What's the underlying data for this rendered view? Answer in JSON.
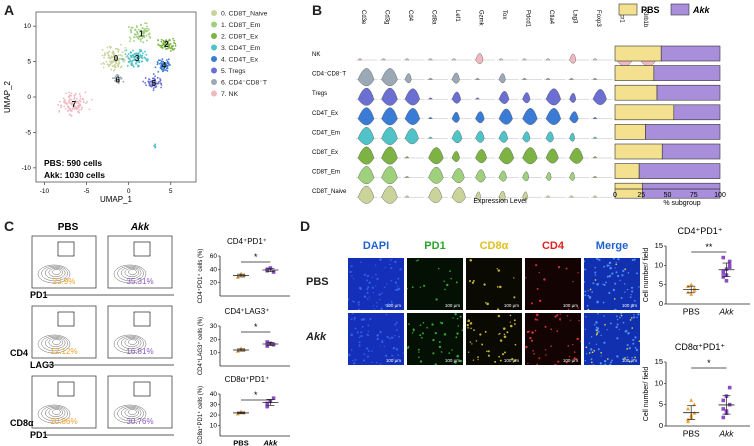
{
  "panels": {
    "A": "A",
    "B": "B",
    "C": "C",
    "D": "D"
  },
  "umap": {
    "xlabel": "UMAP_1",
    "ylabel": "UMAP_2",
    "xticks": [
      "-10",
      "-5",
      "0",
      "5"
    ],
    "yticks": [
      "-10",
      "-5",
      "0",
      "5",
      "10"
    ],
    "legend": [
      {
        "label": "0. CD8T_Naive",
        "color": "#c9d39a"
      },
      {
        "label": "1. CD8T_Em",
        "color": "#9fd07c"
      },
      {
        "label": "2. CD8T_Ex",
        "color": "#7cb342"
      },
      {
        "label": "3. CD4T_Em",
        "color": "#4fc3c7"
      },
      {
        "label": "4. CD4T_Ex",
        "color": "#3a7bd5"
      },
      {
        "label": "5. Tregs",
        "color": "#6a6fd1"
      },
      {
        "label": "6. CD4⁻CD8⁻T",
        "color": "#9aa9b5"
      },
      {
        "label": "7. NK",
        "color": "#f0b8c0"
      }
    ],
    "clusters": [
      {
        "id": "0",
        "x": -1.5,
        "y": 5.5,
        "color": "#c9d39a",
        "spread": 1.6,
        "n": 110
      },
      {
        "id": "1",
        "x": 1.5,
        "y": 9,
        "color": "#9fd07c",
        "spread": 1.3,
        "n": 80
      },
      {
        "id": "2",
        "x": 4.5,
        "y": 7.5,
        "color": "#7cb342",
        "spread": 1.0,
        "n": 70
      },
      {
        "id": "3",
        "x": 1,
        "y": 5.5,
        "color": "#4fc3c7",
        "spread": 1.4,
        "n": 100
      },
      {
        "id": "4",
        "x": 4.2,
        "y": 4.5,
        "color": "#3a7bd5",
        "spread": 0.9,
        "n": 60
      },
      {
        "id": "5",
        "x": 3,
        "y": 2,
        "color": "#6a6fd1",
        "spread": 1.0,
        "n": 60
      },
      {
        "id": "6",
        "x": -1.3,
        "y": 2.5,
        "color": "#9aa9b5",
        "spread": 0.6,
        "n": 25
      },
      {
        "id": "7",
        "x": -6.5,
        "y": -1,
        "color": "#f0b8c0",
        "spread": 1.6,
        "n": 110
      }
    ],
    "counts": [
      "PBS: 590 cells",
      "Akk: 1030 cells"
    ]
  },
  "violin": {
    "genes": [
      "Cd3e",
      "Cd3g",
      "Cd4",
      "Cd8a",
      "Lef1",
      "Gzmk",
      "Tox",
      "Pdcd1",
      "Ctla4",
      "Lag3",
      "Foxp3",
      "Ncr1",
      "Klrb1b"
    ],
    "celltypes": [
      "NK",
      "CD4⁻CD8⁻T",
      "Tregs",
      "CD4T_Ex",
      "CD4T_Em",
      "CD8T_Ex",
      "CD8T_Em",
      "CD8T_Naive"
    ],
    "colors": [
      "#f0b8c0",
      "#9aa9b5",
      "#6a6fd1",
      "#3a7bd5",
      "#4fc3c7",
      "#7cb342",
      "#9fd07c",
      "#c9d39a"
    ],
    "xlabel": "Expression Level",
    "expr": [
      [
        0,
        0,
        0,
        0,
        0,
        0.3,
        0,
        0,
        0,
        0.2,
        0,
        1,
        1
      ],
      [
        1,
        1,
        0.2,
        0,
        0.3,
        0,
        0.2,
        0,
        0,
        0,
        0,
        0,
        0
      ],
      [
        1,
        1,
        0.9,
        0,
        0.4,
        0,
        0.5,
        0.3,
        0.9,
        0.2,
        0.8,
        0,
        0
      ],
      [
        1,
        1,
        0.9,
        0,
        0.3,
        0.4,
        0.8,
        0.9,
        0.9,
        0.4,
        0,
        0,
        0
      ],
      [
        1,
        1,
        0.8,
        0,
        0.5,
        0.4,
        0.4,
        0.3,
        0.3,
        0.1,
        0,
        0,
        0
      ],
      [
        1,
        1,
        0,
        0.9,
        0.3,
        0.6,
        0.9,
        0.9,
        0.7,
        0.8,
        0,
        0,
        0
      ],
      [
        1,
        1,
        0,
        0.9,
        0.7,
        0.5,
        0.3,
        0.2,
        0.1,
        0.1,
        0,
        0,
        0
      ],
      [
        1,
        1,
        0,
        0.8,
        0.8,
        0.1,
        0.2,
        0.1,
        0,
        0,
        0,
        0,
        0
      ]
    ]
  },
  "subgroup": {
    "legend": [
      {
        "label": "PBS",
        "color": "#f3e18f"
      },
      {
        "label": "Akk",
        "color": "#a98fdb"
      }
    ],
    "xlabel": "% subgroup",
    "xticks": [
      "0",
      "25",
      "50",
      "75",
      "100"
    ],
    "pbs": [
      44,
      37,
      40,
      56,
      29,
      45,
      23,
      26
    ]
  },
  "flow": {
    "cols": [
      "PBS",
      "Akk"
    ],
    "rows": [
      {
        "ylab": "",
        "xlab": "PD1",
        "values": [
          "23.9%",
          "35.31%"
        ]
      },
      {
        "ylab": "CD4",
        "xlab": "LAG3",
        "values": [
          "12.12%",
          "16.81%"
        ]
      },
      {
        "ylab": "CD8α",
        "xlab": "PD1",
        "values": [
          "20.86%",
          "30.76%"
        ]
      }
    ],
    "pbs_color": "#f0a030",
    "akk_color": "#8a5cc0"
  },
  "cplots": [
    {
      "title": "CD4⁺PD1⁺",
      "ylabel": "CD4⁺PD1⁺ cells (%)",
      "yticks": [
        "20",
        "40",
        "60"
      ],
      "ymax": 60,
      "pbs": [
        28,
        33,
        31
      ],
      "akk": [
        38,
        42,
        36,
        40
      ],
      "sig": "*"
    },
    {
      "title": "CD4⁺LAG3⁺",
      "ylabel": "CD4⁺LAG3⁺ cells (%)",
      "yticks": [
        "10",
        "20",
        "30"
      ],
      "ymax": 30,
      "pbs": [
        11,
        13,
        12
      ],
      "akk": [
        15,
        17,
        16,
        18
      ],
      "sig": "*"
    },
    {
      "title": "CD8α⁺PD1⁺",
      "ylabel": "CD8α⁺PD1⁺ cells (%)",
      "yticks": [
        "10",
        "20",
        "30",
        "40"
      ],
      "ymax": 40,
      "pbs": [
        21,
        23,
        22
      ],
      "akk": [
        28,
        33,
        36,
        31
      ],
      "sig": "*"
    }
  ],
  "cgroups": [
    "PBS",
    "Akk"
  ],
  "imaging": {
    "channels": [
      {
        "label": "DAPI",
        "color": "#1f62d0",
        "bg": "#1430b8"
      },
      {
        "label": "PD1",
        "color": "#2aa52a",
        "bg": "#041004"
      },
      {
        "label": "CD8α",
        "color": "#e0c020",
        "bg": "#0a0a02"
      },
      {
        "label": "CD4",
        "color": "#e02020",
        "bg": "#140303"
      },
      {
        "label": "Merge",
        "color": "#1f62d0",
        "bg": "#1030b0"
      }
    ],
    "rows": [
      "PBS",
      "Akk"
    ],
    "scale": "100 μm"
  },
  "dplots": [
    {
      "title": "CD4⁺PD1⁺",
      "ylabel": "Cell number/ field",
      "yticks": [
        "0",
        "5",
        "10",
        "15"
      ],
      "ymax": 15,
      "pbs": [
        3,
        5,
        4,
        4.5,
        2.5,
        3.5
      ],
      "akk": [
        7,
        9,
        11,
        8,
        6,
        10,
        12,
        7.5,
        9.5,
        8.5
      ],
      "sig": "**"
    },
    {
      "title": "CD8α⁺PD1⁺",
      "ylabel": "Cell number/ field",
      "yticks": [
        "0",
        "5",
        "10",
        "15"
      ],
      "ymax": 15,
      "pbs": [
        1,
        2,
        3,
        4,
        6,
        5,
        1.5,
        2.5
      ],
      "akk": [
        2,
        3,
        5,
        6,
        7,
        9,
        4,
        3.5
      ],
      "sig": "*"
    }
  ]
}
